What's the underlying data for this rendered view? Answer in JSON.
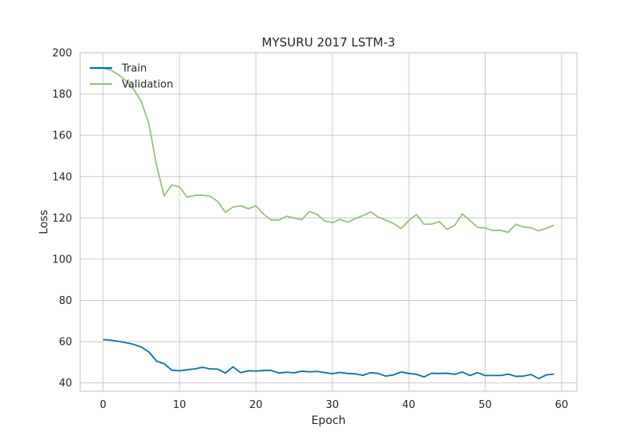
{
  "chart_data": {
    "type": "line",
    "title": "MYSURU 2017 LSTM-3",
    "xlabel": "Epoch",
    "ylabel": "Loss",
    "xlim": [
      -3,
      62
    ],
    "ylim": [
      36,
      200
    ],
    "xticks": [
      0,
      10,
      20,
      30,
      40,
      50,
      60
    ],
    "yticks": [
      40,
      60,
      80,
      100,
      120,
      140,
      160,
      180,
      200
    ],
    "grid": true,
    "legend_position": "top-left",
    "x": [
      0,
      1,
      2,
      3,
      4,
      5,
      6,
      7,
      8,
      9,
      10,
      11,
      12,
      13,
      14,
      15,
      16,
      17,
      18,
      19,
      20,
      21,
      22,
      23,
      24,
      25,
      26,
      27,
      28,
      29,
      30,
      31,
      32,
      33,
      34,
      35,
      36,
      37,
      38,
      39,
      40,
      41,
      42,
      43,
      44,
      45,
      46,
      47,
      48,
      49,
      50,
      51,
      52,
      53,
      54,
      55,
      56,
      57,
      58,
      59
    ],
    "series": [
      {
        "name": "Train",
        "color": "#0072b2",
        "values": [
          61.0,
          60.7,
          60.2,
          59.5,
          58.7,
          57.4,
          55.0,
          50.6,
          49.3,
          46.2,
          45.9,
          46.4,
          46.8,
          47.6,
          46.8,
          46.7,
          44.8,
          47.8,
          45.0,
          45.9,
          45.8,
          46.0,
          46.1,
          44.8,
          45.2,
          44.9,
          45.7,
          45.4,
          45.6,
          45.0,
          44.5,
          45.1,
          44.6,
          44.4,
          43.7,
          45.0,
          44.6,
          43.3,
          43.9,
          45.3,
          44.6,
          44.2,
          42.9,
          44.7,
          44.6,
          44.7,
          44.2,
          45.3,
          43.6,
          45.0,
          43.6,
          43.6,
          43.6,
          44.3,
          43.2,
          43.3,
          44.1,
          42.1,
          43.9,
          44.3
        ]
      },
      {
        "name": "Validation",
        "color": "#93c47d",
        "values": [
          192.7,
          191.6,
          189.5,
          186.4,
          182.3,
          176.4,
          165.6,
          145.3,
          130.7,
          136.0,
          135.0,
          130.0,
          130.9,
          131.0,
          130.5,
          128.0,
          122.7,
          125.2,
          125.9,
          124.4,
          125.9,
          121.8,
          119.0,
          118.9,
          120.8,
          119.9,
          119.1,
          123.1,
          121.7,
          118.5,
          117.7,
          119.3,
          117.9,
          119.6,
          121.1,
          122.9,
          120.4,
          118.9,
          117.3,
          114.8,
          118.6,
          121.6,
          116.9,
          117.0,
          118.2,
          114.5,
          116.3,
          121.9,
          118.8,
          115.4,
          115.1,
          113.9,
          114.0,
          113.0,
          116.9,
          115.6,
          115.2,
          113.7,
          115.0,
          116.4
        ]
      }
    ]
  }
}
